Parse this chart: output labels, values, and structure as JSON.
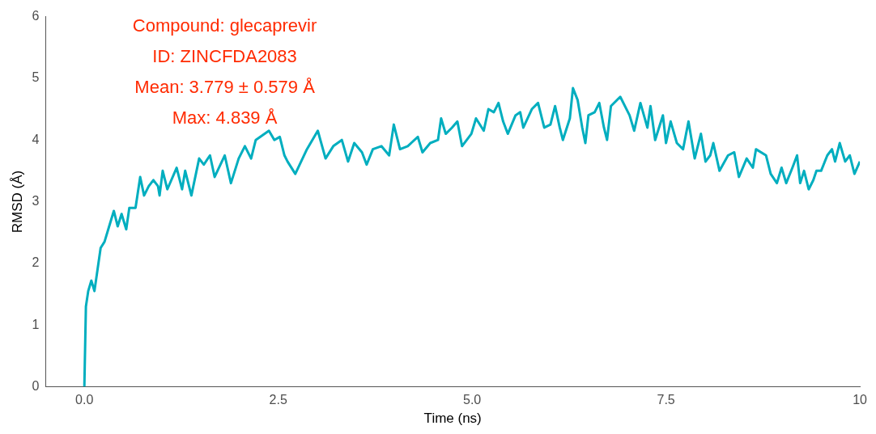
{
  "chart_data": {
    "type": "line",
    "xlabel": "Time (ns)",
    "ylabel": "RMSD (Å)",
    "annotations": [
      "Compound: glecaprevir",
      "ID: ZINCFDA2083",
      "Mean: 3.779 ± 0.579 Å",
      "Max: 4.839 Å"
    ],
    "x": [
      0,
      0.02,
      0.05,
      0.09,
      0.13,
      0.17,
      0.21,
      0.26,
      0.32,
      0.38,
      0.43,
      0.48,
      0.54,
      0.58,
      0.66,
      0.72,
      0.77,
      0.83,
      0.89,
      0.95,
      0.97,
      1.01,
      1.07,
      1.19,
      1.26,
      1.3,
      1.38,
      1.48,
      1.54,
      1.62,
      1.68,
      1.81,
      1.89,
      1.99,
      2.07,
      2.15,
      2.21,
      2.38,
      2.45,
      2.52,
      2.58,
      2.62,
      2.72,
      2.87,
      3.01,
      3.11,
      3.21,
      3.32,
      3.4,
      3.48,
      3.58,
      3.64,
      3.72,
      3.83,
      3.93,
      3.99,
      4.07,
      4.17,
      4.3,
      4.36,
      4.46,
      4.56,
      4.6,
      4.66,
      4.74,
      4.81,
      4.87,
      4.99,
      5.05,
      5.15,
      5.21,
      5.28,
      5.34,
      5.4,
      5.46,
      5.56,
      5.62,
      5.66,
      5.77,
      5.85,
      5.93,
      6.01,
      6.07,
      6.13,
      6.17,
      6.26,
      6.3,
      6.36,
      6.42,
      6.46,
      6.5,
      6.58,
      6.64,
      6.7,
      6.74,
      6.79,
      6.91,
      7.03,
      7.09,
      7.17,
      7.26,
      7.3,
      7.36,
      7.46,
      7.5,
      7.56,
      7.64,
      7.72,
      7.79,
      7.87,
      7.95,
      8.01,
      8.07,
      8.11,
      8.19,
      8.3,
      8.38,
      8.44,
      8.54,
      8.62,
      8.66,
      8.79,
      8.85,
      8.93,
      8.99,
      9.05,
      9.13,
      9.19,
      9.23,
      9.28,
      9.34,
      9.4,
      9.44,
      9.5,
      9.58,
      9.64,
      9.68,
      9.74,
      9.81,
      9.87,
      9.93,
      10
    ],
    "series": [
      {
        "color": "#00aebf",
        "values": [
          0,
          1.3,
          1.55,
          1.72,
          1.55,
          1.9,
          2.25,
          2.35,
          2.6,
          2.85,
          2.6,
          2.8,
          2.55,
          2.9,
          2.9,
          3.4,
          3.1,
          3.25,
          3.35,
          3.25,
          3.1,
          3.5,
          3.2,
          3.55,
          3.2,
          3.5,
          3.1,
          3.7,
          3.6,
          3.75,
          3.4,
          3.75,
          3.3,
          3.7,
          3.9,
          3.7,
          4.0,
          4.15,
          4.0,
          4.05,
          3.75,
          3.65,
          3.45,
          3.85,
          4.15,
          3.7,
          3.9,
          4.0,
          3.65,
          3.95,
          3.8,
          3.6,
          3.85,
          3.9,
          3.75,
          4.25,
          3.85,
          3.9,
          4.05,
          3.8,
          3.95,
          4.0,
          4.35,
          4.1,
          4.2,
          4.3,
          3.9,
          4.1,
          4.35,
          4.15,
          4.5,
          4.45,
          4.6,
          4.3,
          4.1,
          4.4,
          4.45,
          4.2,
          4.5,
          4.6,
          4.2,
          4.25,
          4.55,
          4.2,
          4.0,
          4.35,
          4.84,
          4.65,
          4.2,
          3.95,
          4.4,
          4.45,
          4.6,
          4.2,
          4.0,
          4.55,
          4.7,
          4.4,
          4.15,
          4.6,
          4.2,
          4.55,
          4.0,
          4.4,
          3.95,
          4.3,
          3.95,
          3.85,
          4.3,
          3.7,
          4.1,
          3.65,
          3.75,
          3.95,
          3.5,
          3.75,
          3.8,
          3.4,
          3.7,
          3.55,
          3.85,
          3.75,
          3.45,
          3.3,
          3.55,
          3.3,
          3.55,
          3.75,
          3.3,
          3.5,
          3.2,
          3.35,
          3.5,
          3.5,
          3.75,
          3.85,
          3.65,
          3.95,
          3.65,
          3.75,
          3.45,
          3.65
        ]
      }
    ],
    "xlim": [
      -0.5,
      10
    ],
    "xticks": [
      {
        "value": 0,
        "label": "0.0"
      },
      2.5,
      {
        "value": 5,
        "label": "5.0"
      },
      7.5,
      10
    ],
    "ylim": [
      0,
      6
    ],
    "yticks": [
      0,
      1,
      2,
      3,
      4,
      5,
      6
    ],
    "grid": false,
    "legend": false
  }
}
